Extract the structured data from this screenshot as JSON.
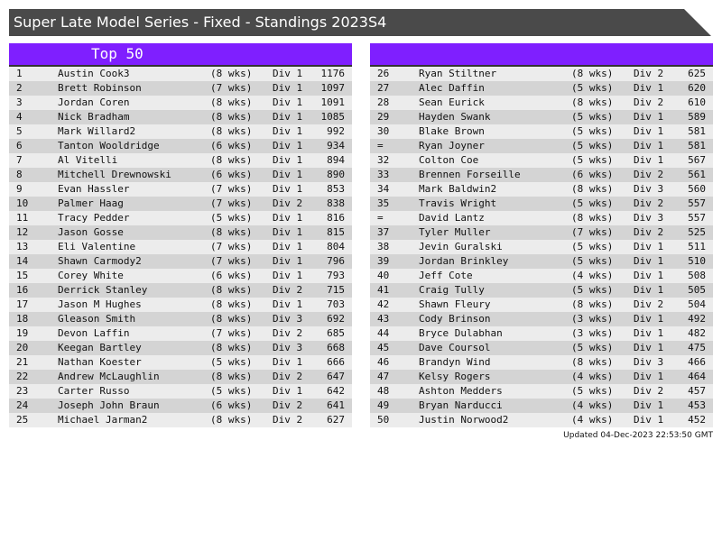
{
  "title": "Super Late Model Series - Fixed - Standings 2023S4",
  "left_header": "Top 50",
  "right_header": "",
  "updated": "Updated 04-Dec-2023 22:53:50 GMT",
  "colors": {
    "title_bg": "#4a4a4a",
    "header_bg": "#7f1fff"
  },
  "left_rows": [
    [
      "1",
      "Austin Cook3",
      "(8 wks)",
      "Div 1",
      "1176"
    ],
    [
      "2",
      "Brett Robinson",
      "(7 wks)",
      "Div 1",
      "1097"
    ],
    [
      "3",
      "Jordan Coren",
      "(8 wks)",
      "Div 1",
      "1091"
    ],
    [
      "4",
      "Nick Bradham",
      "(8 wks)",
      "Div 1",
      "1085"
    ],
    [
      "5",
      "Mark Willard2",
      "(8 wks)",
      "Div 1",
      "992"
    ],
    [
      "6",
      "Tanton Wooldridge",
      "(6 wks)",
      "Div 1",
      "934"
    ],
    [
      "7",
      "Al Vitelli",
      "(8 wks)",
      "Div 1",
      "894"
    ],
    [
      "8",
      "Mitchell Drewnowski",
      "(6 wks)",
      "Div 1",
      "890"
    ],
    [
      "9",
      "Evan Hassler",
      "(7 wks)",
      "Div 1",
      "853"
    ],
    [
      "10",
      "Palmer Haag",
      "(7 wks)",
      "Div 2",
      "838"
    ],
    [
      "11",
      "Tracy Pedder",
      "(5 wks)",
      "Div 1",
      "816"
    ],
    [
      "12",
      "Jason Gosse",
      "(8 wks)",
      "Div 1",
      "815"
    ],
    [
      "13",
      "Eli Valentine",
      "(7 wks)",
      "Div 1",
      "804"
    ],
    [
      "14",
      "Shawn Carmody2",
      "(7 wks)",
      "Div 1",
      "796"
    ],
    [
      "15",
      "Corey White",
      "(6 wks)",
      "Div 1",
      "793"
    ],
    [
      "16",
      "Derrick Stanley",
      "(8 wks)",
      "Div 2",
      "715"
    ],
    [
      "17",
      "Jason M Hughes",
      "(8 wks)",
      "Div 1",
      "703"
    ],
    [
      "18",
      "Gleason Smith",
      "(8 wks)",
      "Div 3",
      "692"
    ],
    [
      "19",
      "Devon Laffin",
      "(7 wks)",
      "Div 2",
      "685"
    ],
    [
      "20",
      "Keegan Bartley",
      "(8 wks)",
      "Div 3",
      "668"
    ],
    [
      "21",
      "Nathan Koester",
      "(5 wks)",
      "Div 1",
      "666"
    ],
    [
      "22",
      "Andrew McLaughlin",
      "(8 wks)",
      "Div 2",
      "647"
    ],
    [
      "23",
      "Carter Russo",
      "(5 wks)",
      "Div 1",
      "642"
    ],
    [
      "24",
      "Joseph John Braun",
      "(6 wks)",
      "Div 2",
      "641"
    ],
    [
      "25",
      "Michael Jarman2",
      "(8 wks)",
      "Div 2",
      "627"
    ]
  ],
  "right_rows": [
    [
      "26",
      "Ryan Stiltner",
      "(8 wks)",
      "Div 2",
      "625"
    ],
    [
      "27",
      "Alec Daffin",
      "(5 wks)",
      "Div 1",
      "620"
    ],
    [
      "28",
      "Sean Eurick",
      "(8 wks)",
      "Div 2",
      "610"
    ],
    [
      "29",
      "Hayden Swank",
      "(5 wks)",
      "Div 1",
      "589"
    ],
    [
      "30",
      "Blake Brown",
      "(5 wks)",
      "Div 1",
      "581"
    ],
    [
      "=",
      "Ryan Joyner",
      "(5 wks)",
      "Div 1",
      "581"
    ],
    [
      "32",
      "Colton Coe",
      "(5 wks)",
      "Div 1",
      "567"
    ],
    [
      "33",
      "Brennen Forseille",
      "(6 wks)",
      "Div 2",
      "561"
    ],
    [
      "34",
      "Mark Baldwin2",
      "(8 wks)",
      "Div 3",
      "560"
    ],
    [
      "35",
      "Travis Wright",
      "(5 wks)",
      "Div 2",
      "557"
    ],
    [
      "=",
      "David Lantz",
      "(8 wks)",
      "Div 3",
      "557"
    ],
    [
      "37",
      "Tyler Muller",
      "(7 wks)",
      "Div 2",
      "525"
    ],
    [
      "38",
      "Jevin Guralski",
      "(5 wks)",
      "Div 1",
      "511"
    ],
    [
      "39",
      "Jordan Brinkley",
      "(5 wks)",
      "Div 1",
      "510"
    ],
    [
      "40",
      "Jeff Cote",
      "(4 wks)",
      "Div 1",
      "508"
    ],
    [
      "41",
      "Craig Tully",
      "(5 wks)",
      "Div 1",
      "505"
    ],
    [
      "42",
      "Shawn Fleury",
      "(8 wks)",
      "Div 2",
      "504"
    ],
    [
      "43",
      "Cody Brinson",
      "(3 wks)",
      "Div 1",
      "492"
    ],
    [
      "44",
      "Bryce Dulabhan",
      "(3 wks)",
      "Div 1",
      "482"
    ],
    [
      "45",
      "Dave Coursol",
      "(5 wks)",
      "Div 1",
      "475"
    ],
    [
      "46",
      "Brandyn Wind",
      "(8 wks)",
      "Div 3",
      "466"
    ],
    [
      "47",
      "Kelsy Rogers",
      "(4 wks)",
      "Div 1",
      "464"
    ],
    [
      "48",
      "Ashton Medders",
      "(5 wks)",
      "Div 2",
      "457"
    ],
    [
      "49",
      "Bryan Narducci",
      "(4 wks)",
      "Div 1",
      "453"
    ],
    [
      "50",
      "Justin Norwood2",
      "(4 wks)",
      "Div 1",
      "452"
    ]
  ]
}
